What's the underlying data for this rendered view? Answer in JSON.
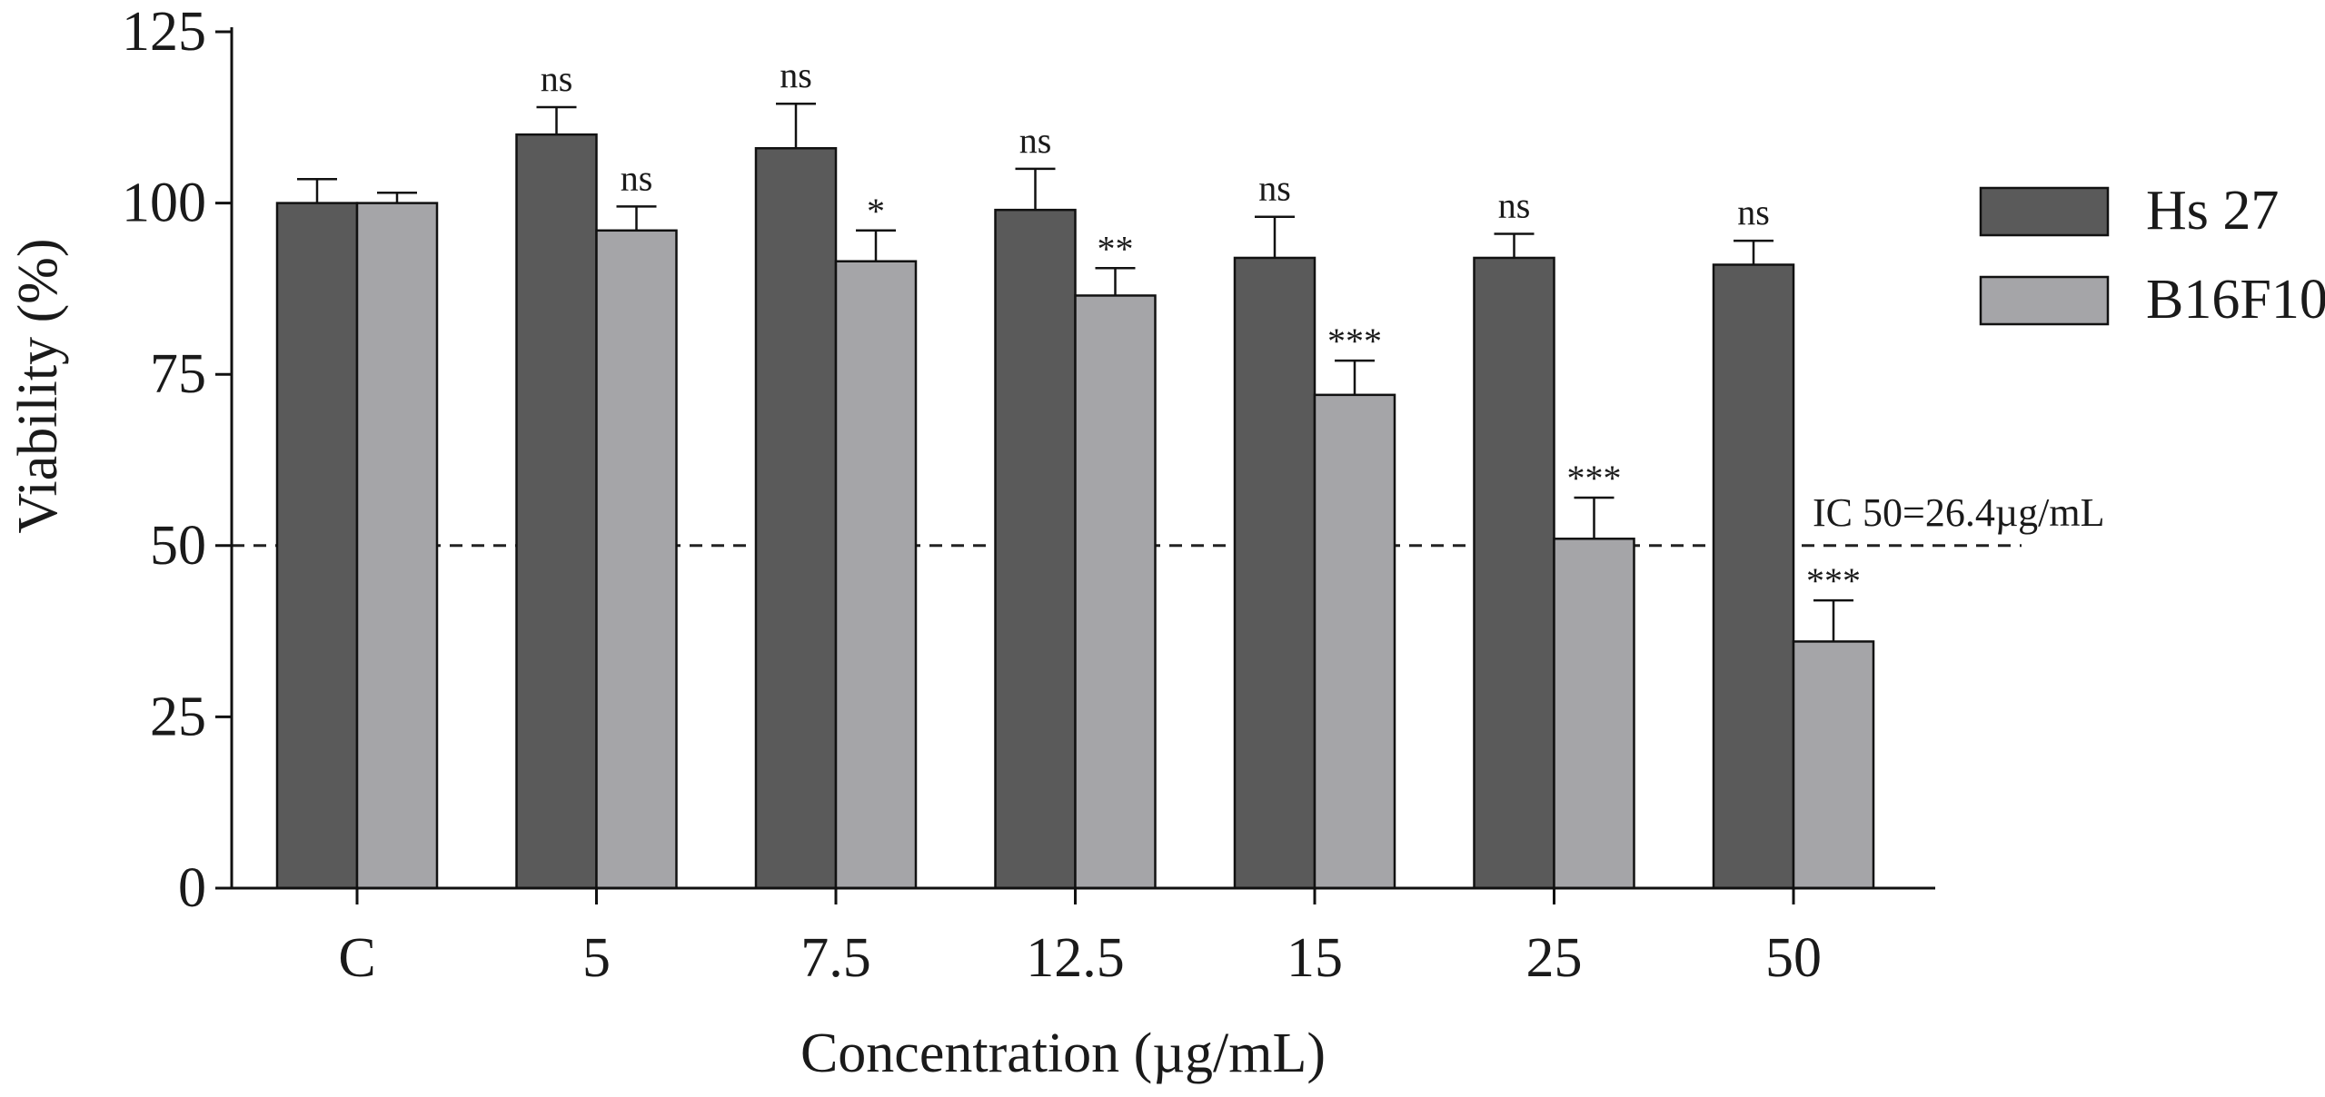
{
  "chart_data": {
    "type": "bar",
    "title": "",
    "xlabel": "Concentration (µg/mL)",
    "ylabel": "Viability (%)",
    "ylim": [
      0,
      125
    ],
    "yticks": [
      0,
      25,
      50,
      75,
      100,
      125
    ],
    "categories": [
      "C",
      "5",
      "7.5",
      "12.5",
      "15",
      "25",
      "50"
    ],
    "series": [
      {
        "name": "Hs 27",
        "color": "#5a5a5a",
        "values": [
          100,
          110,
          108,
          99,
          92,
          92,
          91
        ],
        "errors": [
          3.5,
          4,
          6.5,
          6,
          6,
          3.5,
          3.5
        ],
        "significance": [
          "",
          "ns",
          "ns",
          "ns",
          "ns",
          "ns",
          "ns"
        ]
      },
      {
        "name": "B16F10",
        "color": "#a5a5a8",
        "values": [
          100,
          96,
          91.5,
          86.5,
          72,
          51,
          36
        ],
        "errors": [
          1.5,
          3.5,
          4.5,
          4,
          5,
          6,
          6
        ],
        "significance": [
          "",
          "ns",
          "*",
          "**",
          "***",
          "***",
          "***"
        ]
      }
    ],
    "reference_line": {
      "y": 50,
      "style": "dashed",
      "label": "IC 50=26.4µg/mL"
    },
    "legend_position": "top-right",
    "grid": false
  }
}
